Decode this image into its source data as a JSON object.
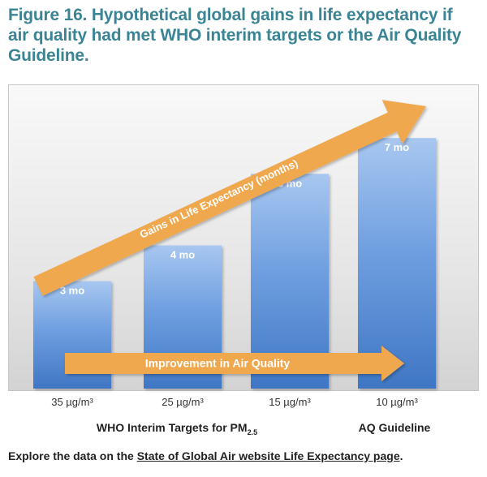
{
  "figure": {
    "title_lines": [
      "Figure 16. Hypothetical global gains in life expectancy if",
      "air quality had met WHO interim targets or the Air Quality",
      "Guideline."
    ]
  },
  "chart_data": {
    "type": "bar",
    "categories": [
      "35 µg/m³",
      "25 µg/m³",
      "15 µg/m³",
      "10 µg/m³"
    ],
    "values": [
      3,
      4,
      6,
      7
    ],
    "data_labels": [
      "3 mo",
      "4 mo",
      "6 mo",
      "7 mo"
    ],
    "unit": "months",
    "ylim": [
      0,
      8.5
    ],
    "grid": false,
    "bar_color": "#5b8fd6",
    "arrow_color": "#f0a850",
    "annotations": {
      "diagonal_arrow": "Gains in Life Expectancy (months)",
      "horizontal_arrow": "Improvement in Air Quality"
    },
    "group_labels": {
      "who_prefix": "WHO Interim Targets for PM",
      "who_subscript": "2.5",
      "aq": "AQ Guideline"
    }
  },
  "footer": {
    "prefix": "Explore the data on the ",
    "link": "State of Global Air website Life Expectancy page",
    "suffix": "."
  }
}
